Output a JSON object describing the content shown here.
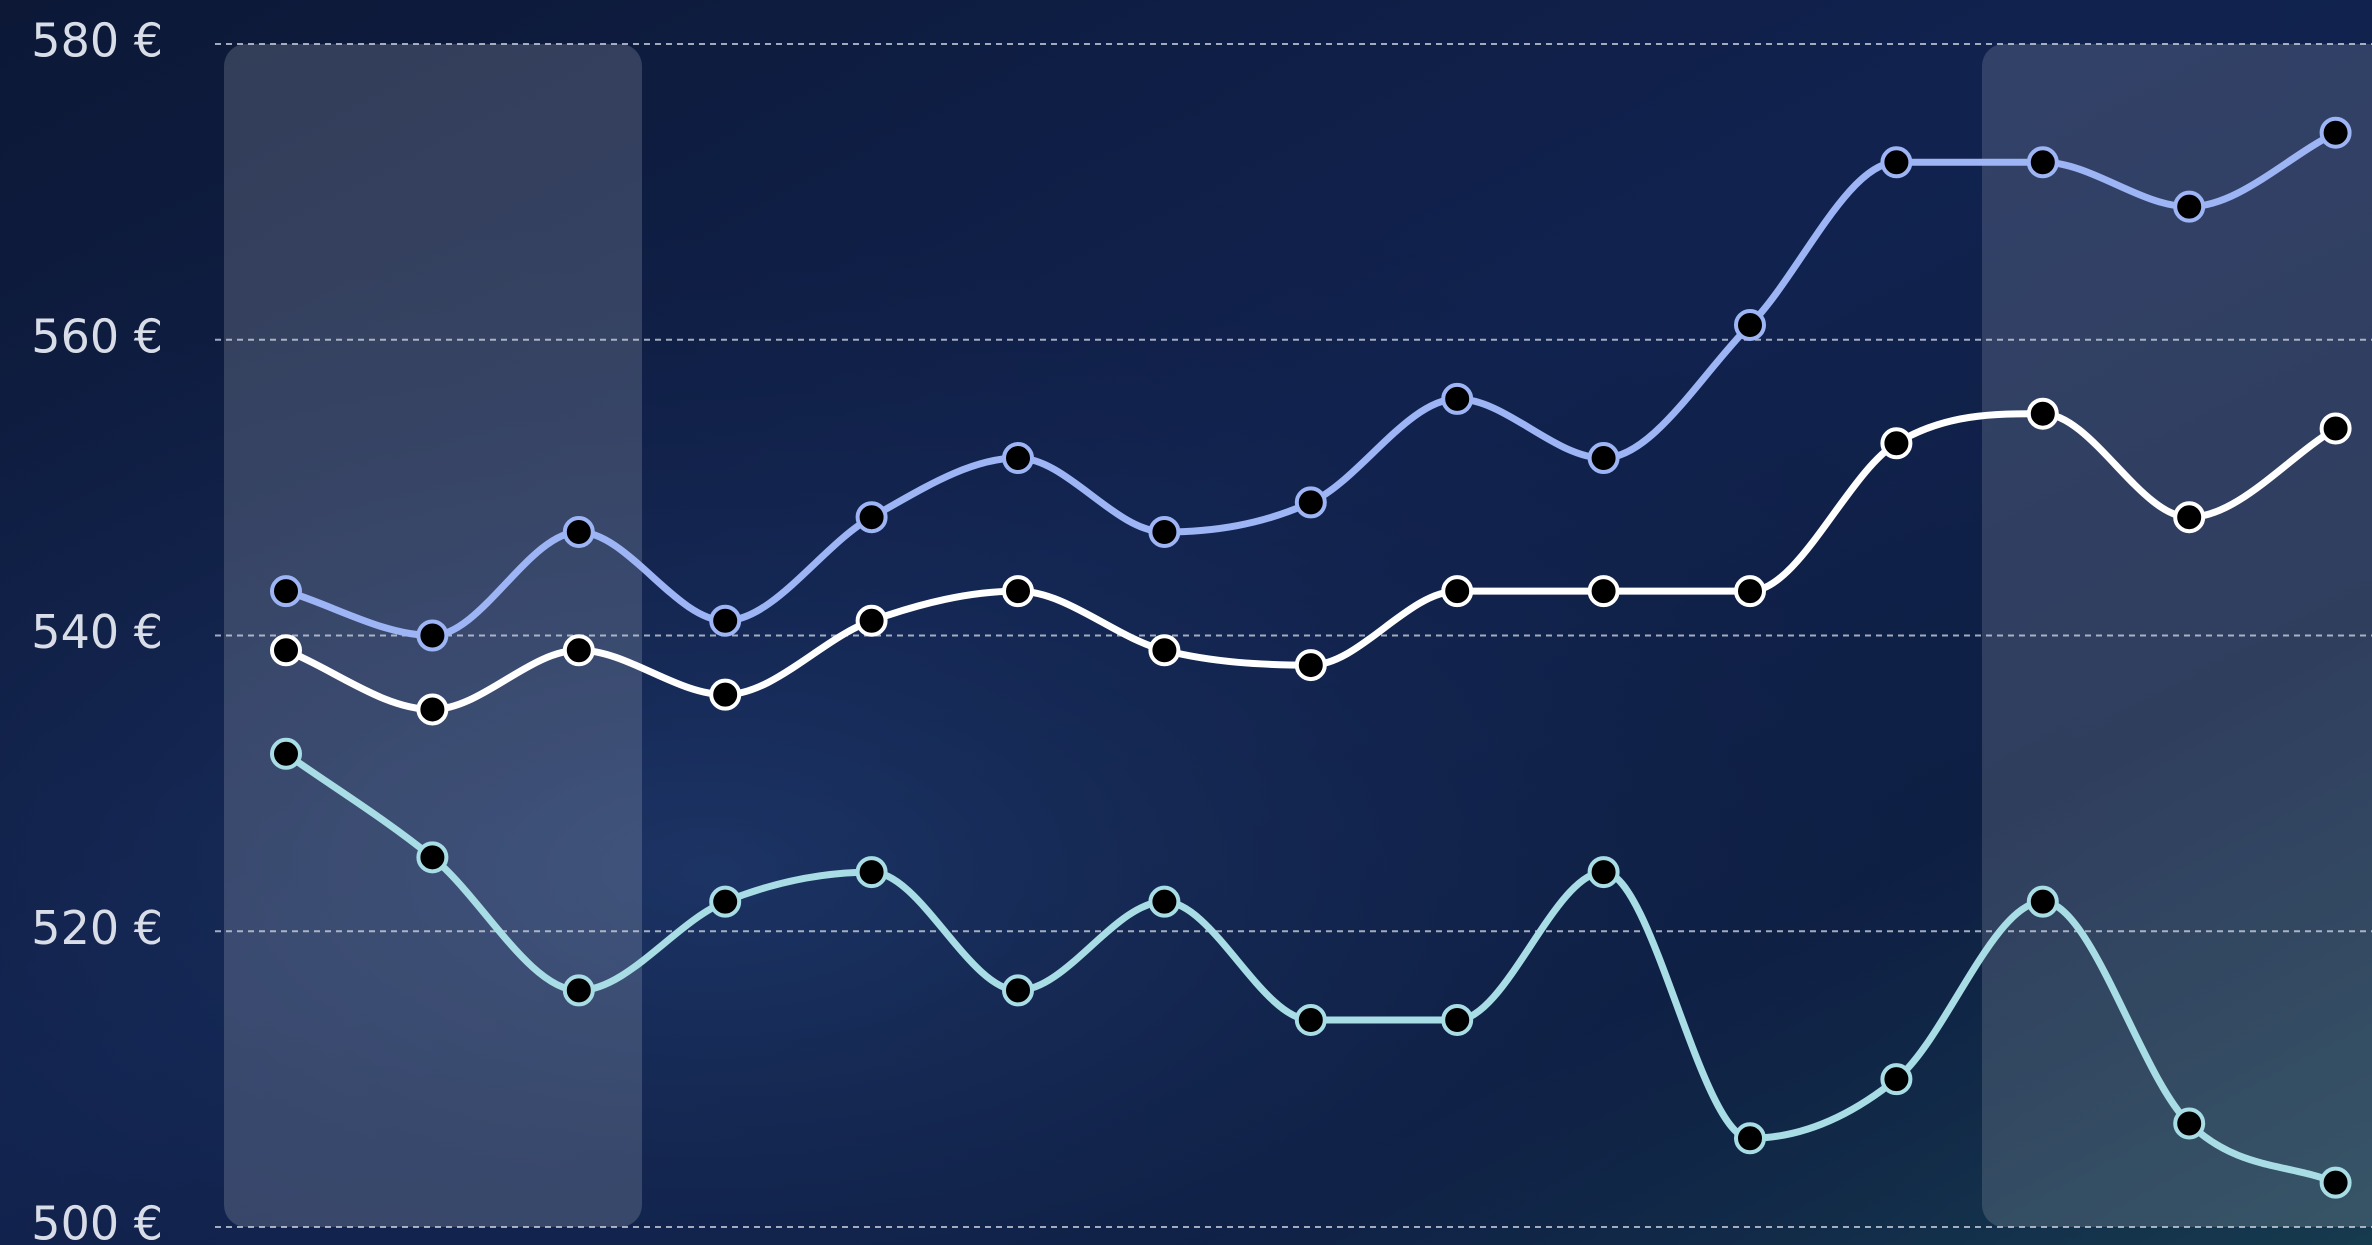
{
  "chart_data": {
    "type": "line",
    "categories": [
      null,
      null,
      null,
      null,
      null,
      null,
      null,
      null,
      null,
      null,
      null,
      null,
      null,
      null,
      null
    ],
    "series": [
      {
        "color": "#9db4f5",
        "values": [
          543,
          540,
          547,
          541,
          548,
          552,
          547,
          549,
          556,
          552,
          561,
          572,
          572,
          569,
          574
        ]
      },
      {
        "color": "#ffffff",
        "values": [
          539,
          535,
          539,
          536,
          541,
          543,
          539,
          538,
          543,
          543,
          543,
          553,
          555,
          548,
          554
        ]
      },
      {
        "color": "#a8dde6",
        "values": [
          532,
          525,
          516,
          522,
          524,
          516,
          522,
          514,
          514,
          524,
          506,
          510,
          522,
          507,
          503
        ]
      }
    ],
    "ylim": [
      500,
      580
    ],
    "yticks": [
      {
        "value": 500,
        "label": "500 €"
      },
      {
        "value": 520,
        "label": "520 €"
      },
      {
        "value": 540,
        "label": "540 €"
      },
      {
        "value": 560,
        "label": "560 €"
      },
      {
        "value": 580,
        "label": "580 €"
      }
    ],
    "grid": true
  }
}
